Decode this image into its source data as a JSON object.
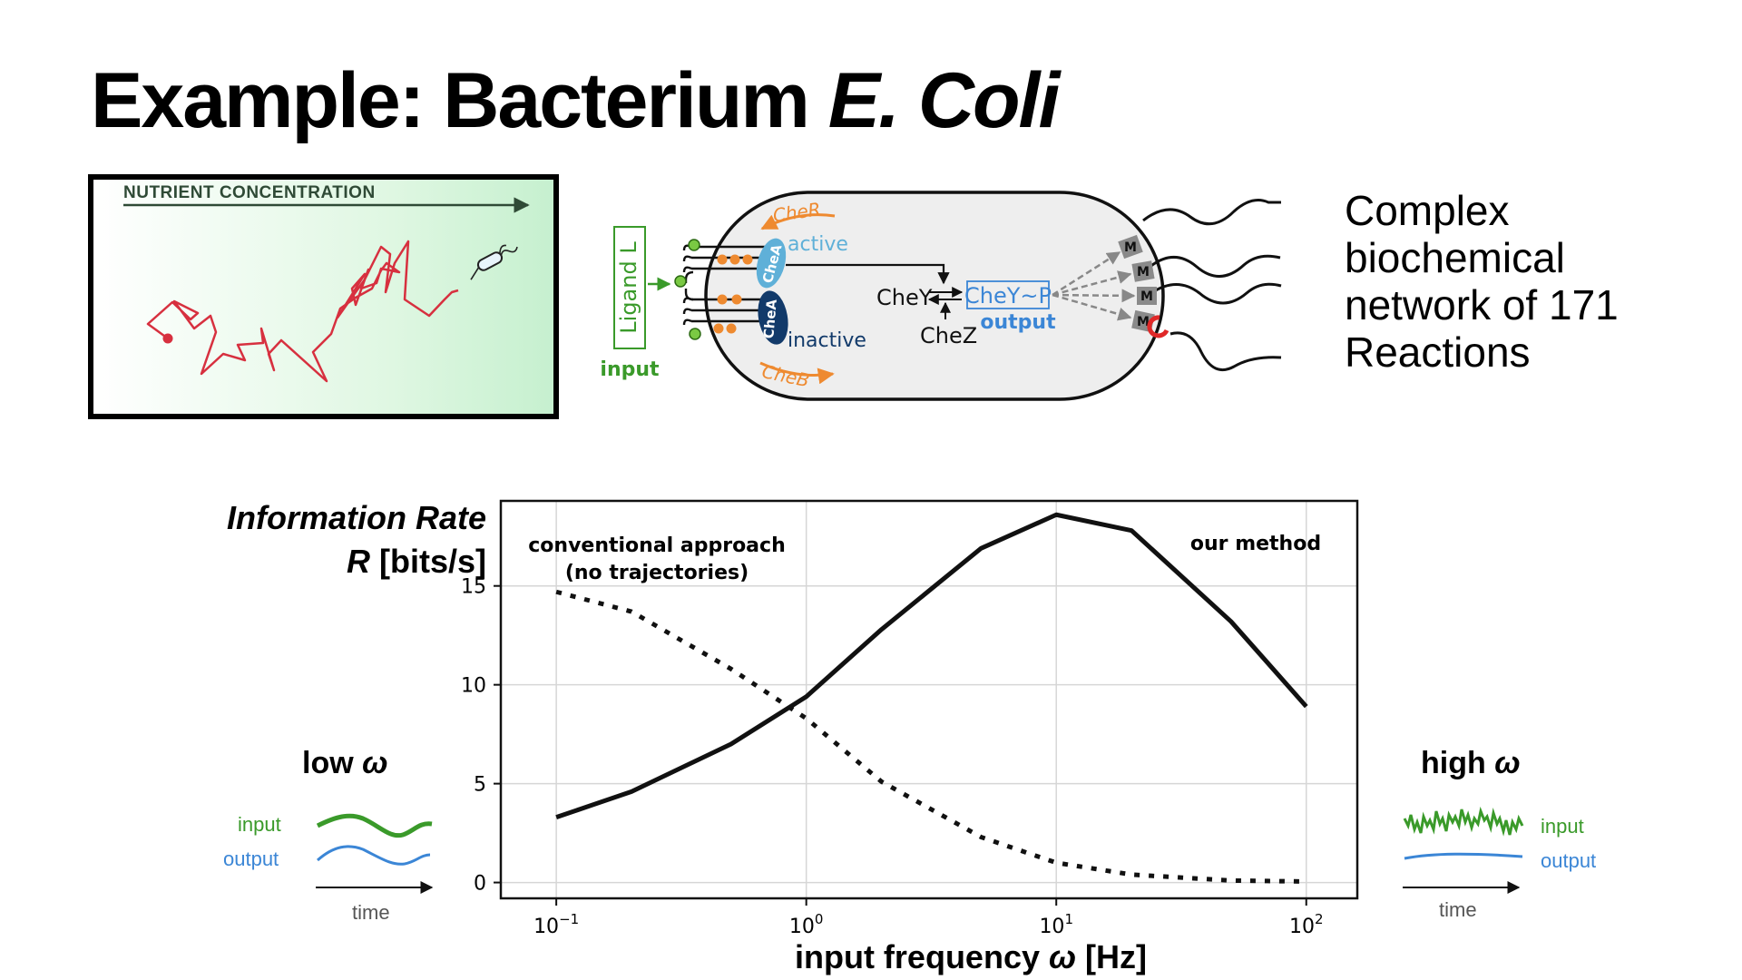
{
  "slide": {
    "title_main": "Example: Bacterium ",
    "title_italic": "E. Coli"
  },
  "nutrient_panel": {
    "label": "NUTRIENT CONCENTRATION",
    "background_color": "#c6f0cf",
    "path_color": "#d7303f"
  },
  "cell_diagram": {
    "ligand_label": "Ligand L",
    "input_label": "input",
    "cheR": "CheR",
    "cheB": "CheB",
    "active": "active",
    "inactive": "inactive",
    "cheA": "CheA",
    "cheY": "CheY",
    "cheZ": "CheZ",
    "cheYP": "CheY~P",
    "output_label": "output",
    "motor_label": "M",
    "colors": {
      "green": "#3a9a2a",
      "orange": "#ee8a30",
      "blue": "#3b86d6",
      "cheA_active": "#5fb0d8",
      "cheA_inactive": "#123a6a",
      "cell_fill": "#eeeeee",
      "motor": "#8a8a8a",
      "red": "#e02828"
    }
  },
  "description": {
    "line1": "Complex",
    "line2": "biochemical",
    "line3": "network of 171",
    "line4": "Reactions"
  },
  "chart_data": {
    "type": "line",
    "ylabel_line1": "Information Rate",
    "ylabel_var": "R",
    "ylabel_unit": " [bits/s]",
    "xlabel_text": "input frequency ",
    "xlabel_var": "ω",
    "xlabel_unit": " [Hz]",
    "x_scale": "log",
    "xlim": [
      0.06,
      160
    ],
    "ylim": [
      -0.8,
      19.3
    ],
    "yticks": [
      0,
      5,
      10,
      15
    ],
    "xticks": [
      0.1,
      1,
      10,
      100
    ],
    "xtick_labels": [
      {
        "base": "10",
        "exp": "−1"
      },
      {
        "base": "10",
        "exp": "0"
      },
      {
        "base": "10",
        "exp": "1"
      },
      {
        "base": "10",
        "exp": "2"
      }
    ],
    "grid": true,
    "series": [
      {
        "name": "our method",
        "style": "solid",
        "x": [
          0.1,
          0.2,
          0.5,
          1,
          2,
          5,
          10,
          20,
          50,
          100
        ],
        "y": [
          3.3,
          4.6,
          7.0,
          9.4,
          12.8,
          16.9,
          18.6,
          17.8,
          13.2,
          8.9
        ]
      },
      {
        "name": "conventional approach",
        "name_line2": "(no trajectories)",
        "style": "dotted",
        "x": [
          0.1,
          0.2,
          0.5,
          1,
          2,
          5,
          10,
          20,
          50,
          100
        ],
        "y": [
          14.7,
          13.7,
          10.8,
          8.3,
          5.1,
          2.3,
          1.0,
          0.4,
          0.1,
          0.05
        ]
      }
    ]
  },
  "low_omega": {
    "label_prefix": "low ",
    "label_var": "ω",
    "input": "input",
    "output": "output",
    "time": "time"
  },
  "high_omega": {
    "label_prefix": "high ",
    "label_var": "ω",
    "input": "input",
    "output": "output",
    "time": "time"
  }
}
